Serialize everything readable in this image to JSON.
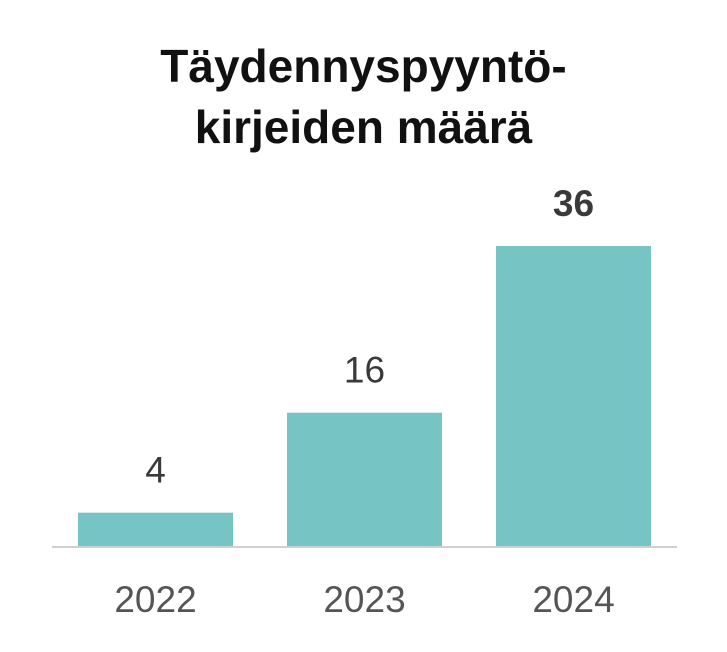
{
  "chart_data": {
    "type": "bar",
    "title_lines": [
      "Täydennyspyyntö-",
      "kirjeiden määrä"
    ],
    "categories": [
      "2022",
      "2023",
      "2024"
    ],
    "values": [
      4,
      16,
      36
    ],
    "emphasized_index": 2,
    "xlabel": "",
    "ylabel": "",
    "ylim": [
      0,
      40
    ],
    "grid": false,
    "bar_color": "#76c5c4",
    "axis_color": "#d0d0d0"
  }
}
